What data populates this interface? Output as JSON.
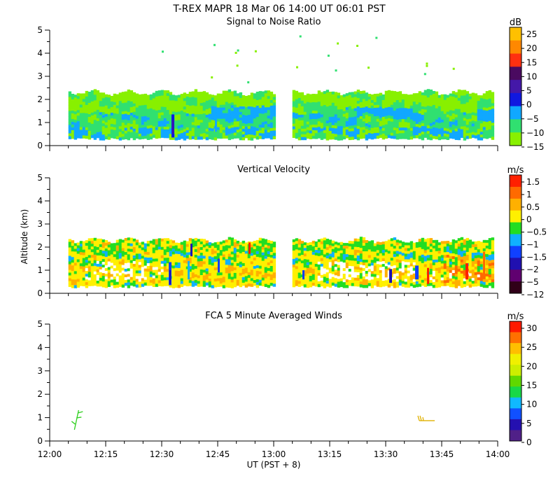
{
  "header": {
    "title": "T-REX   MAPR 18 Mar 06   14:00 UT   06:01   PST"
  },
  "shared_axes": {
    "ylabel": "Altitude (km)",
    "xlabel": "UT  (PST + 8)",
    "x_tick_labels": [
      "12:00",
      "12:15",
      "12:30",
      "12:45",
      "13:00",
      "13:15",
      "13:30",
      "13:45",
      "14:00"
    ],
    "y_tick_labels": [
      "0",
      "1",
      "2",
      "3",
      "4",
      "5"
    ]
  },
  "chart_data": [
    {
      "type": "heatmap",
      "title": "Signal to Noise Ratio",
      "unit": "dB",
      "xlabel": "UT  (PST + 8)",
      "ylabel": "Altitude (km)",
      "xlim": [
        "12:00",
        "14:00"
      ],
      "ylim": [
        0,
        5
      ],
      "data_extent": {
        "segments": [
          [
            "12:05",
            "13:00"
          ],
          [
            "13:05",
            "13:59"
          ]
        ],
        "altitude_km": [
          0.35,
          2.3
        ],
        "dominant_range_db": [
          -15,
          0
        ]
      },
      "colorbar": {
        "labels": [
          "25",
          "20",
          "15",
          "10",
          "5",
          "0",
          "−5",
          "−10",
          "−15"
        ],
        "colors": [
          "#ffc000",
          "#ff8800",
          "#ff3010",
          "#4a0a60",
          "#4418a8",
          "#1018e0",
          "#10a8ff",
          "#30e070",
          "#88f000"
        ]
      }
    },
    {
      "type": "heatmap",
      "title": "Vertical Velocity",
      "unit": "m/s",
      "xlabel": "UT  (PST + 8)",
      "ylabel": "Altitude (km)",
      "xlim": [
        "12:00",
        "14:00"
      ],
      "ylim": [
        0,
        5
      ],
      "data_extent": {
        "segments": [
          [
            "12:05",
            "13:00"
          ],
          [
            "13:05",
            "13:59"
          ]
        ],
        "altitude_km": [
          0.35,
          2.3
        ],
        "dominant_range_ms": [
          -0.5,
          1
        ]
      },
      "colorbar": {
        "labels": [
          "1.5",
          "1",
          "0.5",
          "0",
          "−0.5",
          "−1",
          "−1.5",
          "−2",
          "−5",
          "−12"
        ],
        "colors": [
          "#ff2000",
          "#ff6a00",
          "#ffb000",
          "#fff000",
          "#22dd22",
          "#10b0ff",
          "#1040ff",
          "#2010b0",
          "#600070",
          "#300018"
        ]
      }
    },
    {
      "type": "scatter",
      "title": "FCA 5 Minute Averaged Winds",
      "unit": "m/s",
      "xlabel": "UT  (PST + 8)",
      "ylabel": "Altitude (km)",
      "xlim": [
        "12:00",
        "14:00"
      ],
      "ylim": [
        0,
        5
      ],
      "wind_barbs": [
        {
          "time": "12:07",
          "altitude_km": 0.9,
          "speed_ms": 13,
          "color": "#30d020"
        },
        {
          "time": "13:39",
          "altitude_km": 0.9,
          "speed_ms": 20,
          "color": "#e0b000"
        }
      ],
      "colorbar": {
        "labels": [
          "30",
          "25",
          "20",
          "15",
          "10",
          "5",
          "0"
        ],
        "colors": [
          "#ff1a00",
          "#ff7000",
          "#ffbe00",
          "#f0f000",
          "#ccee00",
          "#60d800",
          "#18d848",
          "#10b8ff",
          "#1050ff",
          "#2410b0",
          "#502088"
        ]
      }
    }
  ]
}
